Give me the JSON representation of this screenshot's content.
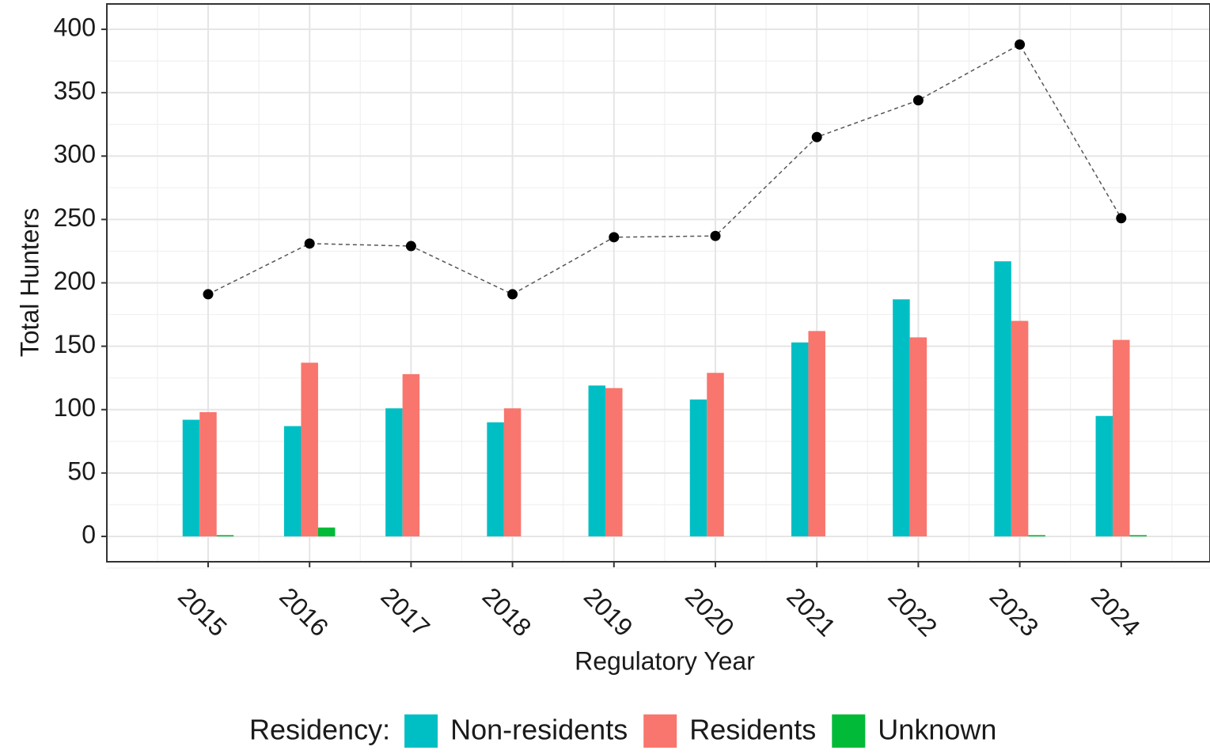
{
  "chart_data": {
    "type": "bar",
    "x_label": "Regulatory Year",
    "y_label": "Total Hunters",
    "categories": [
      "2015",
      "2016",
      "2017",
      "2018",
      "2019",
      "2020",
      "2021",
      "2022",
      "2023",
      "2024"
    ],
    "series": [
      {
        "name": "Non-residents",
        "color": "#00bfc4",
        "values": [
          92,
          87,
          101,
          90,
          119,
          108,
          153,
          187,
          217,
          95
        ]
      },
      {
        "name": "Residents",
        "color": "#f8766d",
        "values": [
          98,
          137,
          128,
          101,
          117,
          129,
          162,
          157,
          170,
          155
        ]
      },
      {
        "name": "Unknown",
        "color": "#00ba38",
        "values": [
          1,
          7,
          0,
          0,
          0,
          0,
          0,
          0,
          1,
          1
        ]
      }
    ],
    "total": {
      "color": "#000000",
      "values": [
        191,
        231,
        229,
        191,
        236,
        237,
        315,
        344,
        388,
        251
      ]
    },
    "legend_title": "Residency:",
    "legend_position": "bottom",
    "ylim": [
      -20,
      420
    ],
    "yticks": [
      0,
      50,
      100,
      150,
      200,
      250,
      300,
      350,
      400
    ],
    "grid": true
  }
}
